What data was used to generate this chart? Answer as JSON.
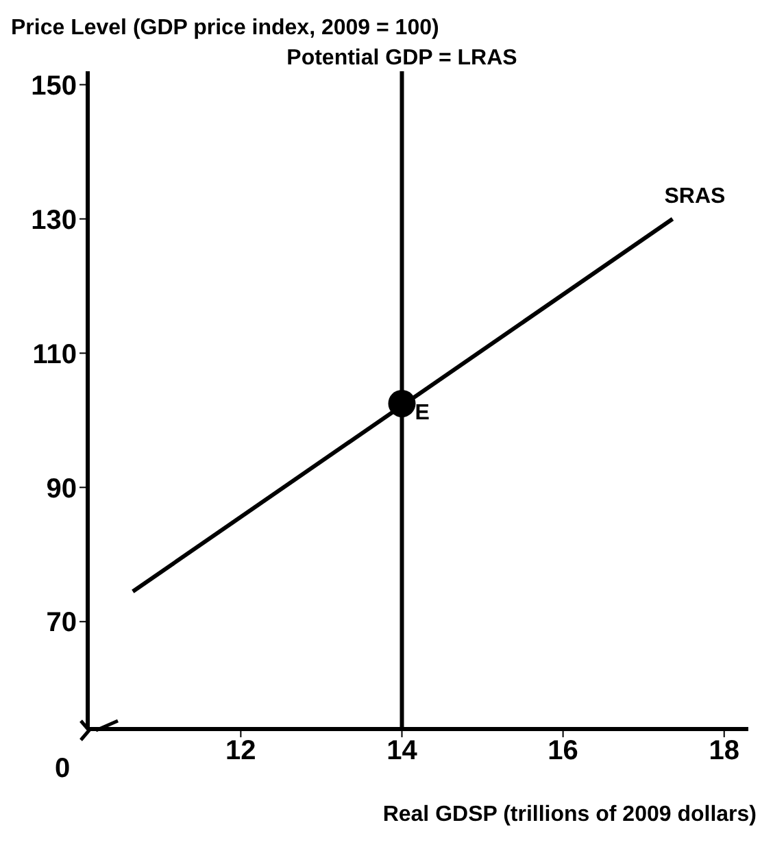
{
  "chart_data": {
    "type": "line",
    "ylabel": "Price Level (GDP price index, 2009 = 100)",
    "xlabel": "Real GDSP (trillions of 2009 dollars)",
    "xlim": [
      10.1,
      18.3
    ],
    "xticks": [
      12,
      14,
      16,
      18
    ],
    "ylim": [
      54,
      152
    ],
    "yticks": [
      70,
      90,
      110,
      130,
      150
    ],
    "annotations": [
      "0"
    ],
    "series": [
      {
        "name": "SRAS",
        "color": "#000000",
        "x": [
          10.66,
          17.36
        ],
        "values": [
          74.5,
          130
        ]
      },
      {
        "name": "E",
        "type": "scatter",
        "color": "#000000",
        "x": [
          14
        ],
        "values": [
          102.5
        ]
      }
    ],
    "ref_lines": [
      {
        "axis": "x",
        "value": 14,
        "label": "Potential GDP = LRAS",
        "color": "#000000"
      }
    ],
    "grid": false,
    "legend": false
  }
}
